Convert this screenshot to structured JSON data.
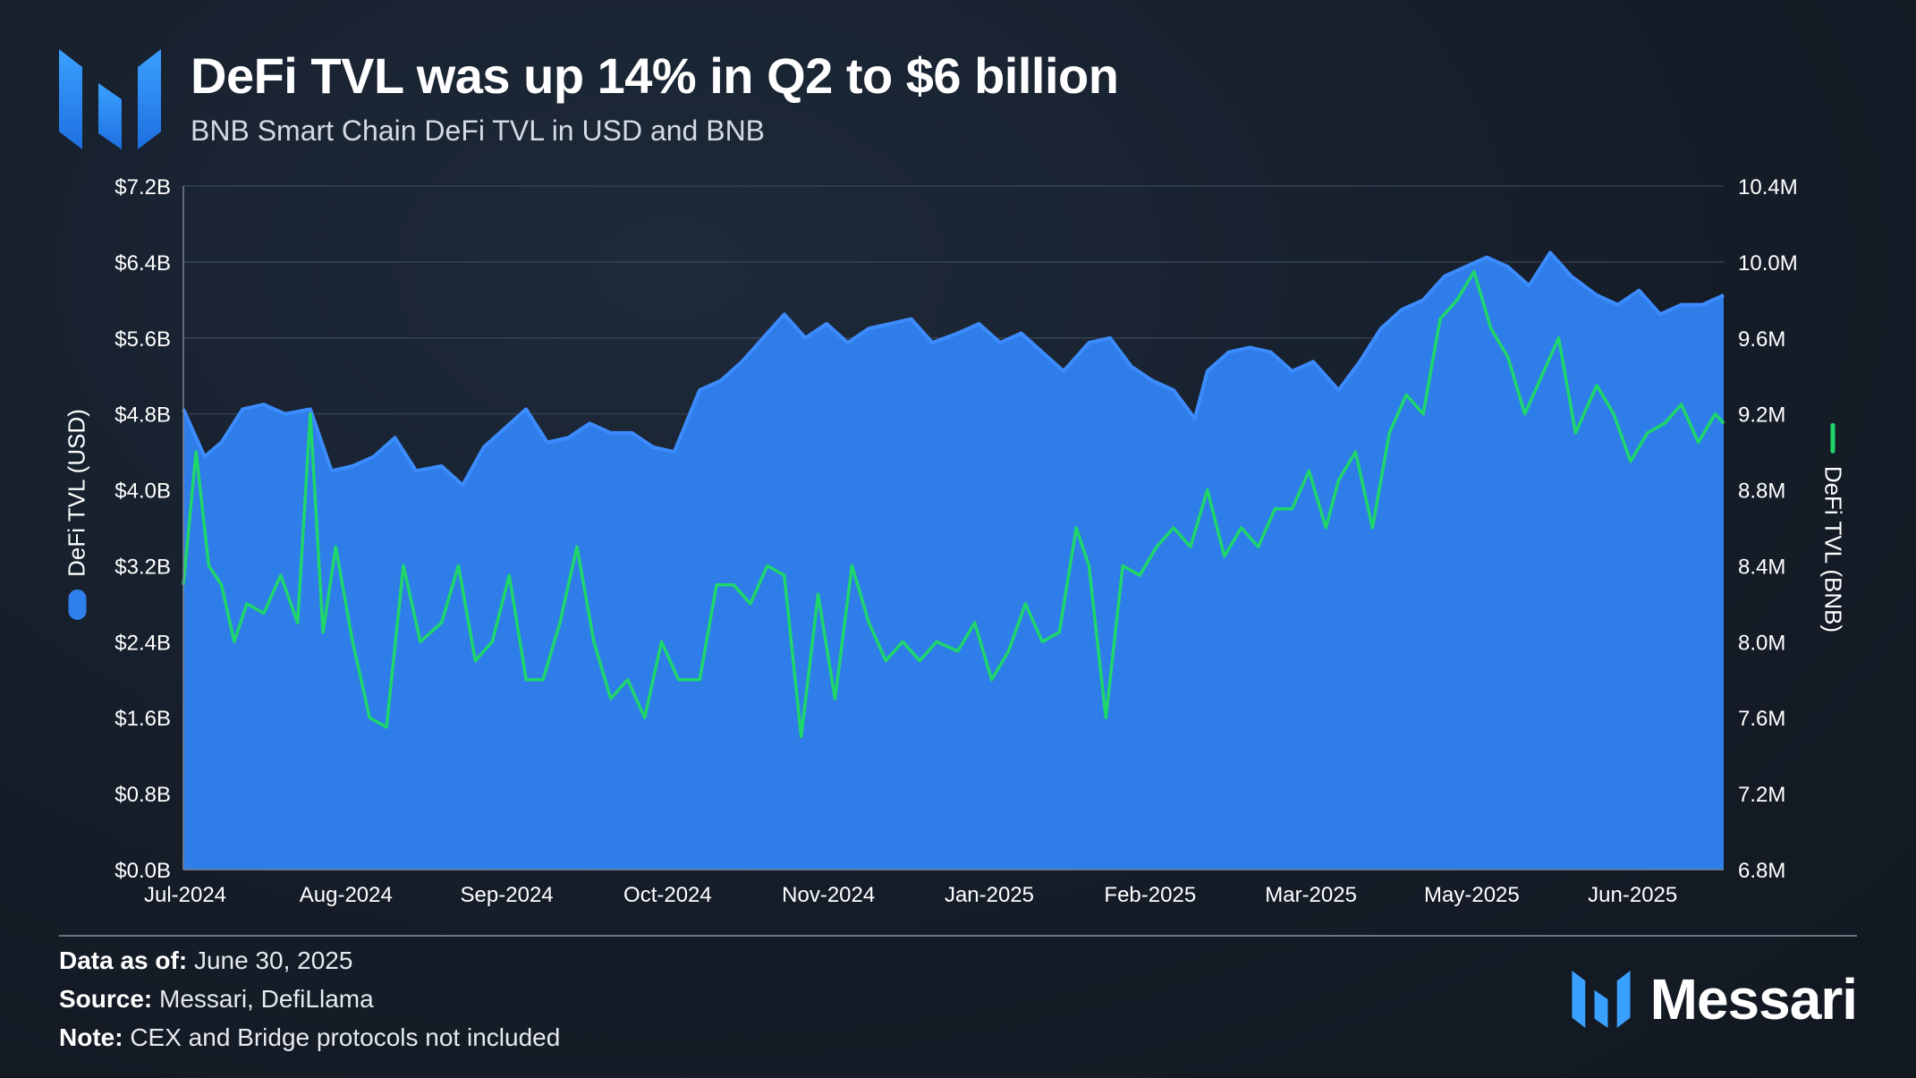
{
  "header": {
    "title": "DeFi TVL was up 14% in Q2 to $6 billion",
    "subtitle": "BNB Smart Chain DeFi TVL in USD and BNB"
  },
  "colors": {
    "usd_fill": "#2f7de9",
    "usd_line": "#3c8cff",
    "bnb_line": "#1fd66b",
    "grid": "#3a4658",
    "background": "#151d29"
  },
  "chart_data": {
    "type": "area",
    "title": "DeFi TVL was up 14% in Q2 to $6 billion",
    "subtitle": "BNB Smart Chain DeFi TVL in USD and BNB",
    "x_tick_labels": [
      "Jul-2024",
      "Aug-2024",
      "Sep-2024",
      "Oct-2024",
      "Nov-2024",
      "Jan-2025",
      "Feb-2025",
      "Mar-2025",
      "May-2025",
      "Jun-2025"
    ],
    "y_left": {
      "label": "DeFi TVL (USD)",
      "ticks": [
        "$0.0B",
        "$0.8B",
        "$1.6B",
        "$2.4B",
        "$3.2B",
        "$4.0B",
        "$4.8B",
        "$5.6B",
        "$6.4B",
        "$7.2B"
      ],
      "range": [
        0,
        7.2
      ],
      "unit": "B USD"
    },
    "y_right": {
      "label": "DeFi TVL (BNB)",
      "ticks": [
        "6.8M",
        "7.2M",
        "7.6M",
        "8.0M",
        "8.4M",
        "8.8M",
        "9.2M",
        "9.6M",
        "10.0M",
        "10.4M"
      ],
      "range": [
        6.8,
        10.4
      ],
      "unit": "M BNB"
    },
    "grid": "horizontal",
    "series": [
      {
        "name": "DeFi TVL (USD)",
        "type": "area",
        "axis": "left",
        "x": [
          "2024-07-01",
          "2024-07-06",
          "2024-07-10",
          "2024-07-15",
          "2024-07-20",
          "2024-07-25",
          "2024-07-31",
          "2024-08-05",
          "2024-08-10",
          "2024-08-15",
          "2024-08-20",
          "2024-08-25",
          "2024-08-31",
          "2024-09-05",
          "2024-09-10",
          "2024-09-15",
          "2024-09-20",
          "2024-09-25",
          "2024-09-30",
          "2024-10-05",
          "2024-10-10",
          "2024-10-15",
          "2024-10-20",
          "2024-10-25",
          "2024-10-31",
          "2024-11-05",
          "2024-11-10",
          "2024-11-15",
          "2024-11-20",
          "2024-11-25",
          "2024-11-30",
          "2024-12-05",
          "2024-12-10",
          "2024-12-15",
          "2024-12-20",
          "2024-12-25",
          "2024-12-31",
          "2025-01-05",
          "2025-01-10",
          "2025-01-15",
          "2025-01-20",
          "2025-01-25",
          "2025-01-31",
          "2025-02-05",
          "2025-02-10",
          "2025-02-15",
          "2025-02-20",
          "2025-02-25",
          "2025-02-28",
          "2025-03-05",
          "2025-03-10",
          "2025-03-15",
          "2025-03-20",
          "2025-03-25",
          "2025-03-31",
          "2025-04-05",
          "2025-04-10",
          "2025-04-15",
          "2025-04-20",
          "2025-04-25",
          "2025-04-30",
          "2025-05-05",
          "2025-05-10",
          "2025-05-15",
          "2025-05-20",
          "2025-05-25",
          "2025-05-31",
          "2025-06-05",
          "2025-06-10",
          "2025-06-15",
          "2025-06-20",
          "2025-06-25",
          "2025-06-30"
        ],
        "values": [
          4.85,
          4.35,
          4.5,
          4.85,
          4.9,
          4.8,
          4.85,
          4.2,
          4.25,
          4.35,
          4.55,
          4.2,
          4.25,
          4.05,
          4.45,
          4.65,
          4.85,
          4.5,
          4.55,
          4.7,
          4.6,
          4.6,
          4.45,
          4.4,
          5.05,
          5.15,
          5.35,
          5.6,
          5.85,
          5.6,
          5.75,
          5.55,
          5.7,
          5.75,
          5.8,
          5.55,
          5.65,
          5.75,
          5.55,
          5.65,
          5.45,
          5.25,
          5.55,
          5.6,
          5.3,
          5.15,
          5.05,
          4.75,
          5.25,
          5.45,
          5.5,
          5.45,
          5.25,
          5.35,
          5.05,
          5.35,
          5.7,
          5.9,
          6.0,
          6.25,
          6.35,
          6.45,
          6.35,
          6.15,
          6.5,
          6.25,
          6.05,
          5.95,
          6.1,
          5.85,
          5.95,
          5.95,
          6.05
        ]
      },
      {
        "name": "DeFi TVL (BNB)",
        "type": "line",
        "axis": "right",
        "x": [
          "2024-07-01",
          "2024-07-04",
          "2024-07-07",
          "2024-07-10",
          "2024-07-13",
          "2024-07-16",
          "2024-07-20",
          "2024-07-24",
          "2024-07-28",
          "2024-07-31",
          "2024-08-03",
          "2024-08-06",
          "2024-08-10",
          "2024-08-14",
          "2024-08-18",
          "2024-08-22",
          "2024-08-26",
          "2024-08-31",
          "2024-09-04",
          "2024-09-08",
          "2024-09-12",
          "2024-09-16",
          "2024-09-20",
          "2024-09-24",
          "2024-09-28",
          "2024-10-02",
          "2024-10-06",
          "2024-10-10",
          "2024-10-14",
          "2024-10-18",
          "2024-10-22",
          "2024-10-26",
          "2024-10-31",
          "2024-11-04",
          "2024-11-08",
          "2024-11-12",
          "2024-11-16",
          "2024-11-20",
          "2024-11-24",
          "2024-11-28",
          "2024-12-02",
          "2024-12-06",
          "2024-12-10",
          "2024-12-14",
          "2024-12-18",
          "2024-12-22",
          "2024-12-26",
          "2024-12-31",
          "2025-01-04",
          "2025-01-08",
          "2025-01-12",
          "2025-01-16",
          "2025-01-20",
          "2025-01-24",
          "2025-01-28",
          "2025-01-31",
          "2025-02-04",
          "2025-02-08",
          "2025-02-12",
          "2025-02-16",
          "2025-02-20",
          "2025-02-24",
          "2025-02-28",
          "2025-03-04",
          "2025-03-08",
          "2025-03-12",
          "2025-03-16",
          "2025-03-20",
          "2025-03-24",
          "2025-03-28",
          "2025-03-31",
          "2025-04-04",
          "2025-04-08",
          "2025-04-12",
          "2025-04-16",
          "2025-04-20",
          "2025-04-24",
          "2025-04-28",
          "2025-05-02",
          "2025-05-06",
          "2025-05-10",
          "2025-05-14",
          "2025-05-18",
          "2025-05-22",
          "2025-05-26",
          "2025-05-31",
          "2025-06-04",
          "2025-06-08",
          "2025-06-12",
          "2025-06-16",
          "2025-06-20",
          "2025-06-24",
          "2025-06-28",
          "2025-06-30"
        ],
        "values": [
          8.3,
          9.0,
          8.4,
          8.3,
          8.0,
          8.2,
          8.15,
          8.35,
          8.1,
          9.2,
          8.05,
          8.5,
          8.0,
          7.6,
          7.55,
          8.4,
          8.0,
          8.1,
          8.4,
          7.9,
          8.0,
          8.35,
          7.8,
          7.8,
          8.1,
          8.5,
          8.0,
          7.7,
          7.8,
          7.6,
          8.0,
          7.8,
          7.8,
          8.3,
          8.3,
          8.2,
          8.4,
          8.35,
          7.5,
          8.25,
          7.7,
          8.4,
          8.1,
          7.9,
          8.0,
          7.9,
          8.0,
          7.95,
          8.1,
          7.8,
          7.95,
          8.2,
          8.0,
          8.05,
          8.6,
          8.4,
          7.6,
          8.4,
          8.35,
          8.5,
          8.6,
          8.5,
          8.8,
          8.45,
          8.6,
          8.5,
          8.7,
          8.7,
          8.9,
          8.6,
          8.85,
          9.0,
          8.6,
          9.1,
          9.3,
          9.2,
          9.7,
          9.8,
          9.95,
          9.65,
          9.5,
          9.2,
          9.4,
          9.6,
          9.1,
          9.35,
          9.2,
          8.95,
          9.1,
          9.15,
          9.25,
          9.05,
          9.2,
          9.15
        ]
      }
    ],
    "legend": "axis-titles"
  },
  "footer": {
    "data_as_of_label": "Data as of:",
    "data_as_of_value": "June 30, 2025",
    "source_label": "Source:",
    "source_value": "Messari, DefiLlama",
    "note_label": "Note:",
    "note_value": "CEX and Bridge protocols not included"
  },
  "brand": {
    "name": "Messari",
    "logo_icon": "messari-logo-icon"
  }
}
